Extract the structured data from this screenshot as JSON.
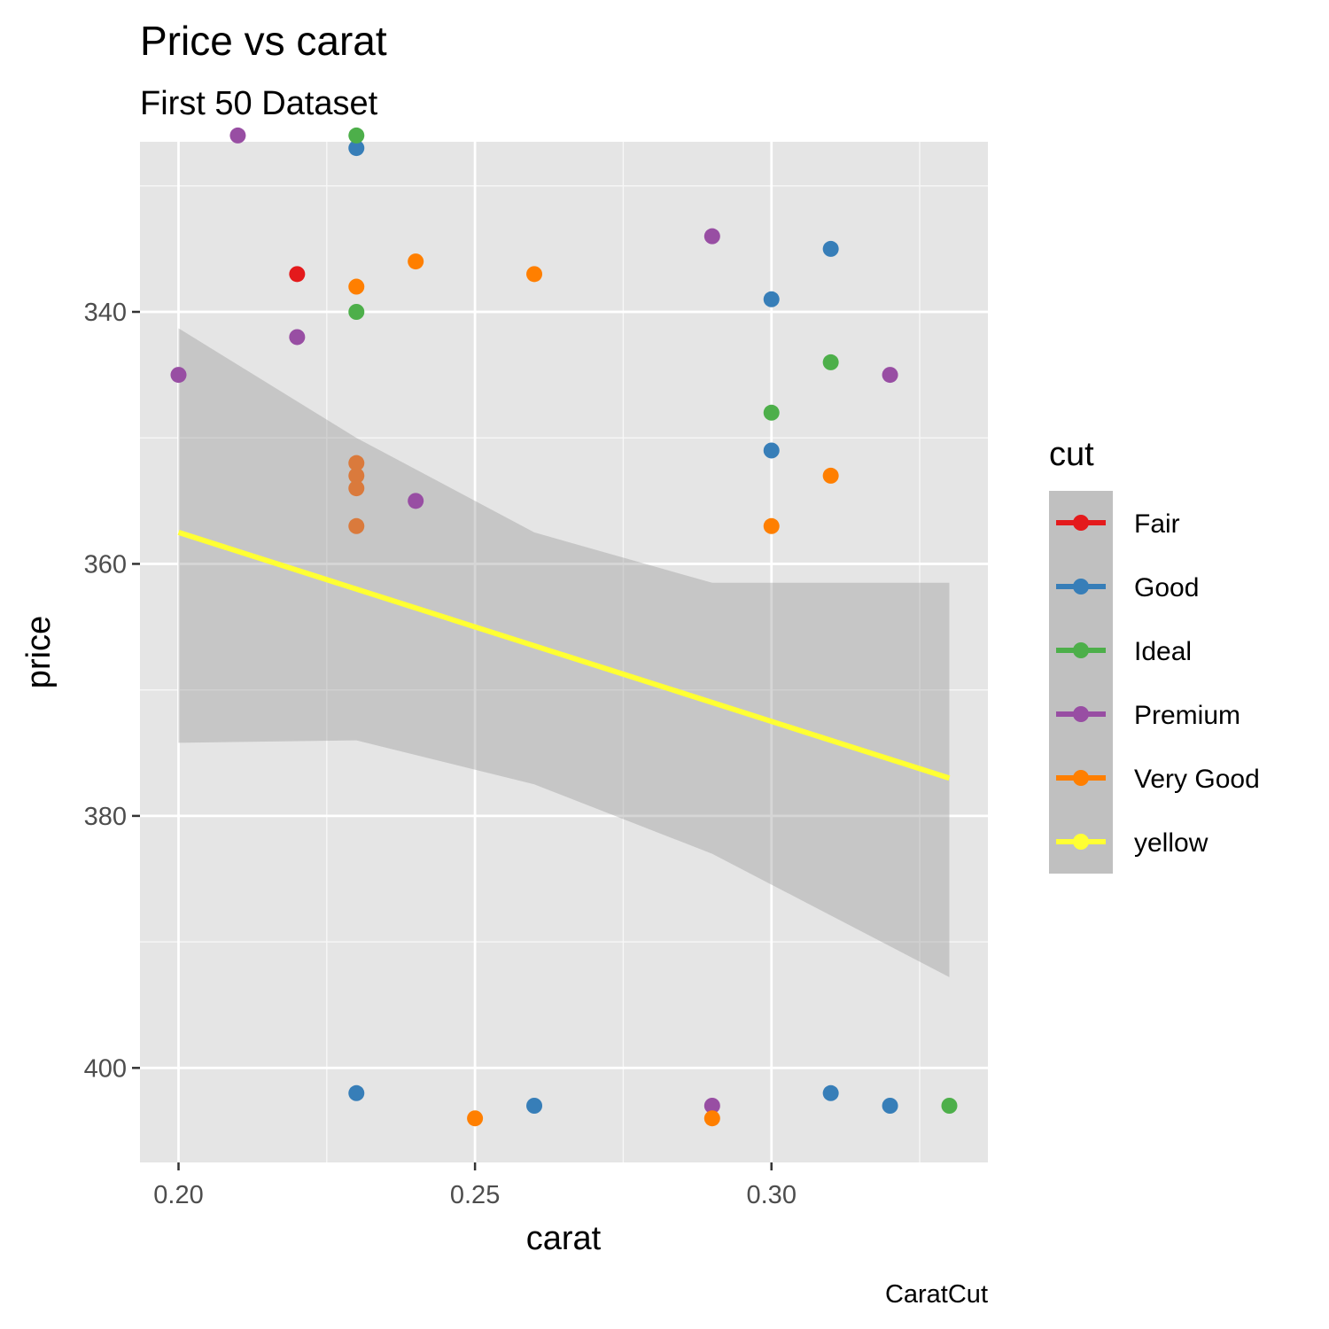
{
  "chart_data": {
    "type": "scatter",
    "title": "Price vs carat",
    "subtitle": "First 50 Dataset",
    "xlabel": "carat",
    "ylabel": "price",
    "caption": "CaratCut",
    "x_ticks": [
      "0.20",
      "0.25",
      "0.30"
    ],
    "y_ticks": [
      "340",
      "360",
      "380",
      "400"
    ],
    "xlim": [
      0.1935,
      0.3365
    ],
    "ylim": [
      326.5,
      407.5
    ],
    "y_reversed": true,
    "grid": true,
    "legend": {
      "title": "cut",
      "position": "right",
      "items": [
        {
          "label": "Fair",
          "color": "#E41A1C"
        },
        {
          "label": "Good",
          "color": "#377EB8"
        },
        {
          "label": "Ideal",
          "color": "#4DAF4A"
        },
        {
          "label": "Premium",
          "color": "#984EA3"
        },
        {
          "label": "Very Good",
          "color": "#FF7F00"
        },
        {
          "label": "yellow",
          "color": "#FFFF33"
        }
      ]
    },
    "series": [
      {
        "name": "Fair",
        "color": "#E41A1C",
        "points": [
          [
            0.22,
            337
          ]
        ]
      },
      {
        "name": "Good",
        "color": "#377EB8",
        "points": [
          [
            0.23,
            327
          ],
          [
            0.31,
            335
          ],
          [
            0.3,
            339
          ],
          [
            0.3,
            351
          ],
          [
            0.23,
            402
          ],
          [
            0.26,
            403
          ],
          [
            0.31,
            402
          ],
          [
            0.32,
            403
          ]
        ]
      },
      {
        "name": "Ideal",
        "color": "#4DAF4A",
        "points": [
          [
            0.23,
            326
          ],
          [
            0.23,
            340
          ],
          [
            0.31,
            344
          ],
          [
            0.3,
            348
          ],
          [
            0.33,
            403
          ]
        ]
      },
      {
        "name": "Premium",
        "color": "#984EA3",
        "points": [
          [
            0.21,
            326
          ],
          [
            0.29,
            334
          ],
          [
            0.22,
            342
          ],
          [
            0.2,
            345
          ],
          [
            0.32,
            345
          ],
          [
            0.24,
            355
          ],
          [
            0.29,
            403
          ]
        ]
      },
      {
        "name": "Very Good",
        "color": "#FF7F00",
        "points": [
          [
            0.24,
            336
          ],
          [
            0.26,
            337
          ],
          [
            0.23,
            338
          ],
          [
            0.31,
            353
          ],
          [
            0.3,
            357
          ],
          [
            0.25,
            404
          ],
          [
            0.29,
            404
          ]
        ]
      },
      {
        "name": "Very Good",
        "color": "#DA7A3C",
        "points": [
          [
            0.23,
            352
          ],
          [
            0.23,
            353
          ],
          [
            0.23,
            354
          ],
          [
            0.23,
            357
          ]
        ]
      }
    ],
    "trend_line": {
      "color": "#FFFF33",
      "x": [
        0.2,
        0.33
      ],
      "y": [
        357.5,
        377.0
      ]
    },
    "confidence_band": {
      "color": "#999999",
      "x": [
        0.2,
        0.23,
        0.26,
        0.29,
        0.33
      ],
      "lower": [
        341.3,
        350.0,
        357.5,
        361.5,
        361.5
      ],
      "upper": [
        374.2,
        374.0,
        377.5,
        383.0,
        392.8
      ]
    }
  }
}
